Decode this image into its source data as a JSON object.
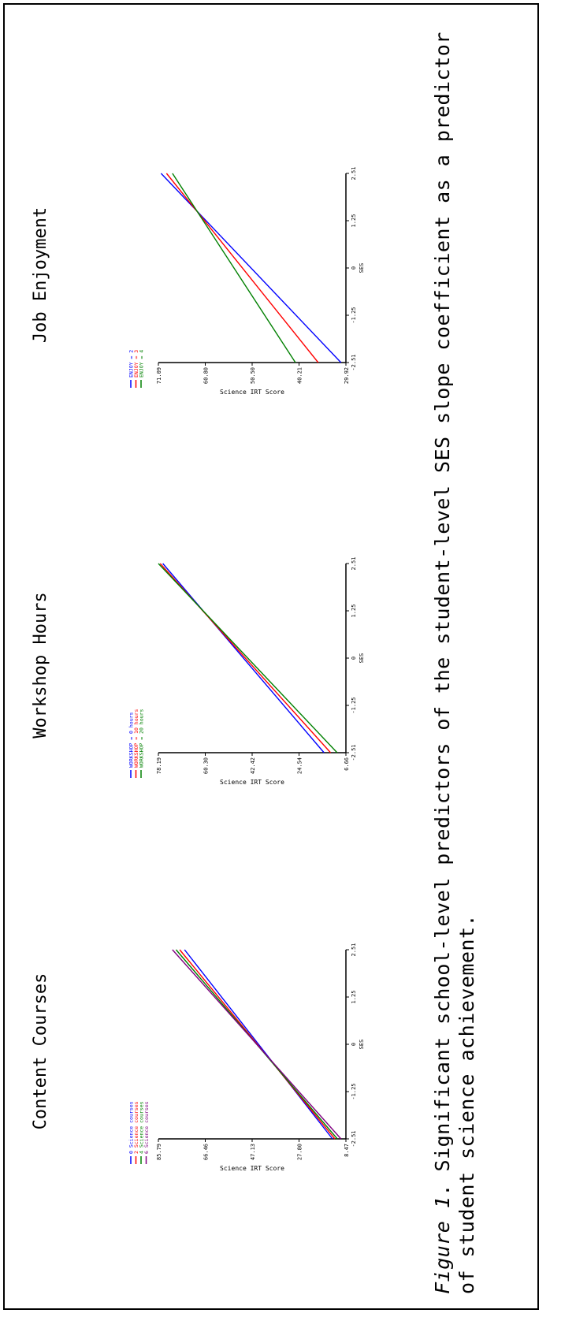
{
  "caption": {
    "lead": "Figure 1",
    "text": ". Significant school-level predictors of the student-level SES slope coefficient as a predictor of student science achievement."
  },
  "chart_data": [
    {
      "type": "line",
      "title": "Content Courses",
      "xlabel": "SES",
      "ylabel": "Science IRT Score",
      "x_ticks": [
        "-2.51",
        "-1.25",
        "0",
        "1.25",
        "2.51"
      ],
      "y_ticks": [
        "8.47",
        "27.80",
        "47.13",
        "66.46",
        "85.79"
      ],
      "xlim": [
        -2.51,
        2.51
      ],
      "ylim": [
        8.47,
        85.79
      ],
      "legend_position": "top-left",
      "series": [
        {
          "name": "0 Science courses",
          "color": "#0000ff",
          "x": [
            -2.51,
            2.51
          ],
          "y": [
            14.0,
            75.0
          ]
        },
        {
          "name": "2 Science courses",
          "color": "#ff0000",
          "x": [
            -2.51,
            2.51
          ],
          "y": [
            13.0,
            77.0
          ]
        },
        {
          "name": "4 Science courses",
          "color": "#008000",
          "x": [
            -2.51,
            2.51
          ],
          "y": [
            12.0,
            78.5
          ]
        },
        {
          "name": "6 Science courses",
          "color": "#800080",
          "x": [
            -2.51,
            2.51
          ],
          "y": [
            10.5,
            80.0
          ]
        }
      ]
    },
    {
      "type": "line",
      "title": "Workshop Hours",
      "xlabel": "SES",
      "ylabel": "Science IRT Score",
      "x_ticks": [
        "-2.51",
        "-1.25",
        "0",
        "1.25",
        "2.51"
      ],
      "y_ticks": [
        "6.66",
        "24.54",
        "42.42",
        "60.30",
        "78.19"
      ],
      "xlim": [
        -2.51,
        2.51
      ],
      "ylim": [
        6.66,
        78.19
      ],
      "legend_position": "top-left",
      "series": [
        {
          "name": "WORKSHOP = 0 hours",
          "color": "#0000ff",
          "x": [
            -2.51,
            2.51
          ],
          "y": [
            15.0,
            76.5
          ]
        },
        {
          "name": "WORKSHOP = 10 hours",
          "color": "#ff0000",
          "x": [
            -2.51,
            2.51
          ],
          "y": [
            12.5,
            77.5
          ]
        },
        {
          "name": "WORKSHOP = 20 hours",
          "color": "#008000",
          "x": [
            -2.51,
            2.51
          ],
          "y": [
            10.0,
            78.19
          ]
        }
      ]
    },
    {
      "type": "line",
      "title": "Job Enjoyment",
      "xlabel": "SES",
      "ylabel": "Science IRT Score",
      "x_ticks": [
        "-2.51",
        "-1.25",
        "0",
        "1.25",
        "2.51"
      ],
      "y_ticks": [
        "29.92",
        "40.21",
        "50.50",
        "60.80",
        "71.09"
      ],
      "xlim": [
        -2.51,
        2.51
      ],
      "ylim": [
        29.92,
        71.09
      ],
      "legend_position": "top-left",
      "series": [
        {
          "name": "ENJOY = 2",
          "color": "#0000ff",
          "x": [
            -2.51,
            2.51
          ],
          "y": [
            31.0,
            70.5
          ]
        },
        {
          "name": "ENJOY = 3",
          "color": "#ff0000",
          "x": [
            -2.51,
            2.51
          ],
          "y": [
            36.0,
            69.3
          ]
        },
        {
          "name": "ENJOY = 4",
          "color": "#008000",
          "x": [
            -2.51,
            2.51
          ],
          "y": [
            41.0,
            68.0
          ]
        }
      ]
    }
  ]
}
